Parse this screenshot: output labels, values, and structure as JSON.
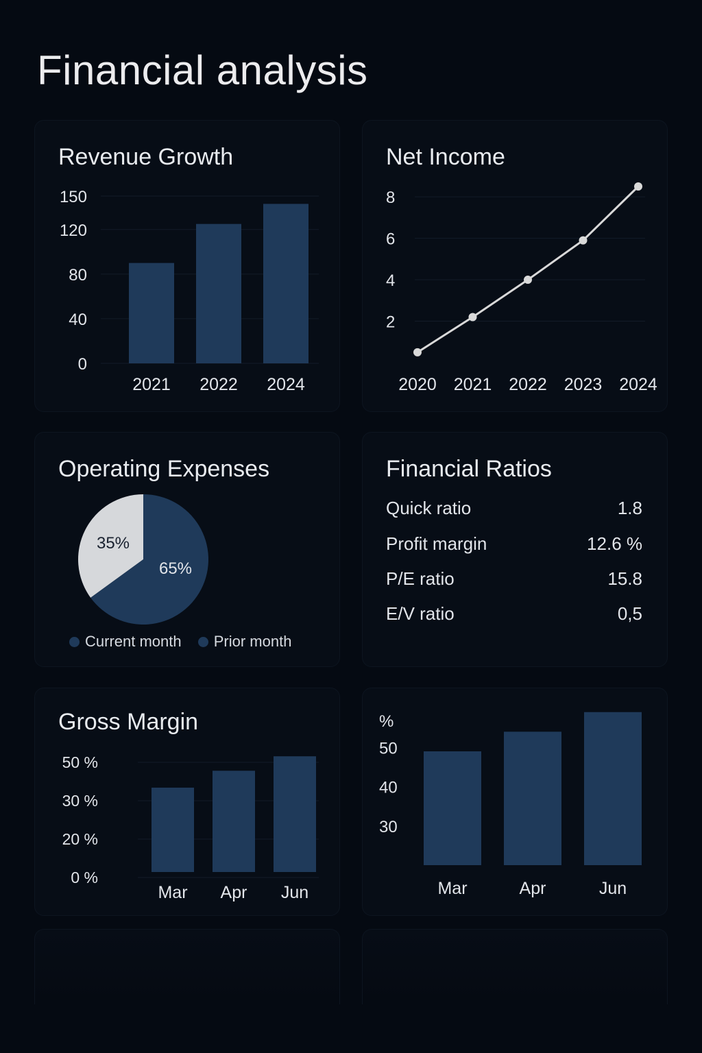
{
  "page": {
    "title": "Financial analysis"
  },
  "colors": {
    "background": "#050a12",
    "card": "#070d16",
    "bar": "#1f3a5a",
    "line": "#d9d9d9",
    "pie_light": "#d6d8db",
    "pie_dark": "#1f3a5a"
  },
  "chart_data": [
    {
      "id": "revenue",
      "type": "bar",
      "title": "Revenue Growth",
      "categories": [
        "2021",
        "2022",
        "2024"
      ],
      "values": [
        90,
        125,
        143
      ],
      "yticks": [
        "0",
        "40",
        "80",
        "120",
        "150"
      ],
      "ytick_values": [
        0,
        40,
        80,
        120,
        150
      ],
      "ylim": [
        0,
        150
      ],
      "xlabel": "",
      "ylabel": ""
    },
    {
      "id": "net_income",
      "type": "line",
      "title": "Net Income",
      "categories": [
        "2020",
        "2021",
        "2022",
        "2023",
        "2024"
      ],
      "values": [
        0.5,
        2.2,
        4.0,
        5.9,
        8.5
      ],
      "yticks": [
        "2",
        "4",
        "6",
        "8"
      ],
      "ytick_values": [
        2,
        4,
        6,
        8
      ],
      "ylim": [
        0,
        8.5
      ],
      "xlabel": "",
      "ylabel": ""
    },
    {
      "id": "opex",
      "type": "pie",
      "title": "Operating Expenses",
      "slices": [
        {
          "label": "35%",
          "value": 35
        },
        {
          "label": "65%",
          "value": 65
        }
      ],
      "legend": [
        "Current month",
        "Prior month"
      ]
    },
    {
      "id": "gross_margin",
      "type": "bar",
      "title": "Gross Margin",
      "categories": [
        "Mar",
        "Apr",
        "Jun"
      ],
      "values": [
        35,
        42,
        48
      ],
      "yticks": [
        "0 %",
        "20 %",
        "30 %",
        "50 %"
      ],
      "ytick_values": [
        0,
        20,
        30,
        50
      ],
      "ylim": [
        0,
        60
      ],
      "xlabel": "",
      "ylabel": ""
    },
    {
      "id": "percent_chart",
      "type": "bar",
      "title": "",
      "unit_label": "%",
      "categories": [
        "Mar",
        "Apr",
        "Jun"
      ],
      "values": [
        49,
        54,
        59
      ],
      "yticks": [
        "30",
        "40",
        "50"
      ],
      "ytick_values": [
        30,
        40,
        50
      ],
      "ylim": [
        20,
        60
      ],
      "xlabel": "",
      "ylabel": "%"
    }
  ],
  "ratios": {
    "title": "Financial Ratios",
    "rows": [
      {
        "label": "Quick ratio",
        "value": "1.8"
      },
      {
        "label": "Profit margin",
        "value": "12.6 %"
      },
      {
        "label": "P/E ratio",
        "value": "15.8"
      },
      {
        "label": "E/V ratio",
        "value": "0,5"
      }
    ]
  }
}
